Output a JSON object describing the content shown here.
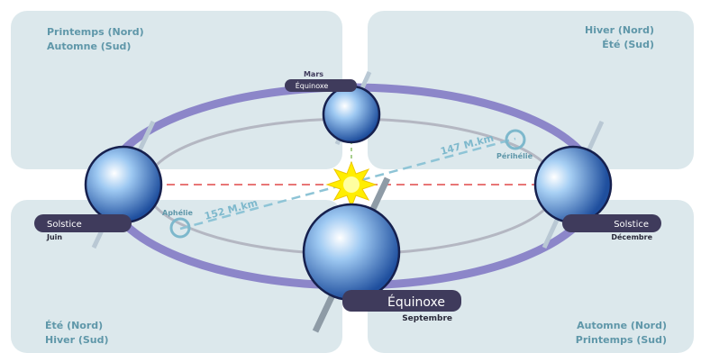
{
  "seasons": {
    "top_left": [
      "Printemps (Nord)",
      "Automne (Sud)"
    ],
    "top_right": [
      "Hiver (Nord)",
      "Été (Sud)"
    ],
    "bottom_left": [
      "Été (Nord)",
      "Hiver (Sud)"
    ],
    "bottom_right": [
      "Automne (Nord)",
      "Printemps (Sud)"
    ]
  },
  "positions": {
    "march": {
      "month": "Mars",
      "event": "Équinoxe"
    },
    "june": {
      "event": "Solstice",
      "month": "Juin"
    },
    "december": {
      "event": "Solstice",
      "month": "Décembre"
    },
    "september": {
      "event": "Équinoxe",
      "month": "Septembre"
    }
  },
  "orbit_points": {
    "perihelion": {
      "label": "Périhélie",
      "distance": "147 M.km"
    },
    "aphelion": {
      "label": "Aphélie",
      "distance": "152 M.km"
    }
  },
  "colors": {
    "panel": "#dce8ec",
    "season_text": "#5f97a9",
    "orbit": "#8c86c9",
    "label_box": "#3f3b5c",
    "sun": "#ffee00",
    "axis_line": "#e04848"
  }
}
